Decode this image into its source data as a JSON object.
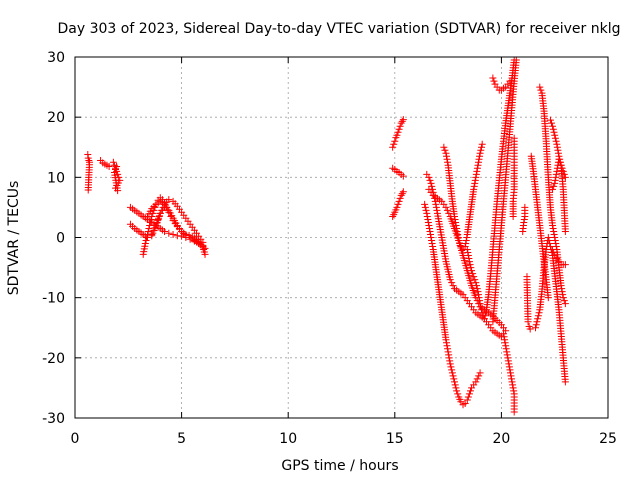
{
  "chart_data": {
    "type": "scatter",
    "title": "Day 303 of 2023, Sidereal Day-to-day VTEC variation (SDTVAR) for receiver nklg",
    "xlabel": "GPS time / hours",
    "ylabel": "SDTVAR / TECUs",
    "xlim": [
      0,
      25
    ],
    "ylim": [
      -30,
      30
    ],
    "xticks": [
      "0",
      "5",
      "10",
      "15",
      "20",
      "25"
    ],
    "yticks": [
      "-30",
      "-20",
      "-10",
      "0",
      "10",
      "20",
      "30"
    ],
    "grid": true,
    "marker": "plus",
    "color": "#ff0000",
    "series": [
      {
        "x": [
          0.6,
          0.62,
          0.65,
          0.68,
          0.62
        ],
        "y": [
          13.8,
          13.2,
          12.8,
          12.5,
          7.9
        ]
      },
      {
        "x": [
          1.2,
          1.3,
          1.4,
          1.5,
          1.6
        ],
        "y": [
          12.8,
          12.4,
          12.2,
          12.0,
          11.8
        ]
      },
      {
        "x": [
          1.8,
          1.85,
          1.9,
          1.95,
          2.0,
          2.05,
          2.1,
          1.9,
          2.0,
          1.85,
          1.95
        ],
        "y": [
          12.5,
          12.0,
          11.5,
          11.0,
          10.5,
          10.0,
          9.5,
          8.2,
          7.8,
          10.8,
          11.8
        ]
      },
      {
        "x": [
          2.6,
          2.8,
          3.0,
          3.2,
          3.4,
          3.6,
          3.8,
          4.0,
          4.2,
          4.4,
          4.6,
          4.8,
          5.0,
          5.2,
          5.4,
          5.6,
          5.8,
          6.0,
          6.1
        ],
        "y": [
          5.0,
          4.5,
          4.0,
          3.5,
          3.0,
          2.5,
          2.0,
          1.5,
          1.0,
          0.7,
          0.5,
          0.3,
          0.2,
          0.0,
          -0.3,
          -0.6,
          -0.9,
          -1.3,
          -1.8
        ]
      },
      {
        "x": [
          2.6,
          2.8,
          3.0,
          3.2,
          3.4,
          3.6,
          3.8,
          4.0,
          4.2,
          4.4,
          4.6,
          4.8,
          5.0,
          5.2,
          5.4,
          5.6,
          5.8,
          6.0
        ],
        "y": [
          2.2,
          1.5,
          1.0,
          0.5,
          0.0,
          0.3,
          2.0,
          4.0,
          5.5,
          6.3,
          6.0,
          5.2,
          4.2,
          3.2,
          2.2,
          1.2,
          0.2,
          -0.8
        ]
      },
      {
        "x": [
          3.2,
          3.3,
          3.4,
          3.5,
          3.6,
          3.7,
          3.8,
          3.9,
          4.0,
          4.1,
          4.2,
          4.3,
          4.4,
          4.5,
          4.6,
          4.8,
          5.0,
          5.2,
          5.5,
          5.8,
          6.0,
          6.1
        ],
        "y": [
          -2.8,
          -1.0,
          0.5,
          2.0,
          3.5,
          4.5,
          5.5,
          6.2,
          6.6,
          6.3,
          5.8,
          5.0,
          4.2,
          3.5,
          2.8,
          1.8,
          1.0,
          0.5,
          0.2,
          -0.6,
          -1.6,
          -2.8
        ]
      },
      {
        "x": [
          3.4,
          3.6,
          3.8,
          4.0,
          4.2,
          4.4,
          4.6,
          4.8,
          5.0,
          5.2,
          5.4,
          5.6,
          5.8,
          6.0
        ],
        "y": [
          3.5,
          4.8,
          5.5,
          6.0,
          5.5,
          4.5,
          3.2,
          2.0,
          1.0,
          0.3,
          0.0,
          -0.5,
          -1.0,
          -1.5
        ]
      },
      {
        "x": [
          3.6,
          3.7,
          3.8,
          3.9,
          4.0,
          4.1,
          4.2
        ],
        "y": [
          0.5,
          1.2,
          2.0,
          3.0,
          4.0,
          4.5,
          5.0
        ]
      },
      {
        "x": [
          14.9,
          14.95,
          15.0,
          15.05,
          15.1,
          15.15,
          15.2,
          15.25,
          15.3,
          15.35,
          15.4
        ],
        "y": [
          15.0,
          15.5,
          16.0,
          16.6,
          17.0,
          17.5,
          18.0,
          18.5,
          19.0,
          19.3,
          19.6
        ]
      },
      {
        "x": [
          14.9,
          15.0,
          15.1,
          15.2,
          15.3,
          15.4
        ],
        "y": [
          11.5,
          11.3,
          11.0,
          10.8,
          10.5,
          10.2
        ]
      },
      {
        "x": [
          14.9,
          14.95,
          15.0,
          15.05,
          15.1,
          15.15,
          15.2,
          15.25,
          15.3,
          15.35,
          15.4
        ],
        "y": [
          3.5,
          3.8,
          4.2,
          4.6,
          5.0,
          5.5,
          6.0,
          6.5,
          7.0,
          7.3,
          7.6
        ]
      },
      {
        "x": [
          16.4,
          16.5,
          16.6,
          16.7,
          16.8,
          16.9,
          17.0,
          17.1,
          17.2,
          17.3,
          17.4,
          17.5,
          17.6,
          17.7,
          17.8,
          17.9,
          18.0,
          18.1,
          18.2,
          18.3,
          18.4,
          18.5,
          18.6,
          18.8,
          19.0
        ],
        "y": [
          5.5,
          4.0,
          2.0,
          0.0,
          -2.0,
          -4.5,
          -7.0,
          -9.5,
          -12.0,
          -14.5,
          -17.0,
          -19.0,
          -21.0,
          -22.5,
          -24.0,
          -25.5,
          -26.5,
          -27.3,
          -27.8,
          -27.6,
          -27.0,
          -26.0,
          -25.0,
          -24.0,
          -22.5
        ]
      },
      {
        "x": [
          16.5,
          16.6,
          16.7,
          16.8,
          16.9,
          17.0,
          17.2,
          17.4,
          17.6,
          17.8,
          18.0,
          18.2,
          18.4,
          18.6,
          18.8,
          19.0,
          19.2,
          19.4,
          19.6,
          19.8,
          20.0
        ],
        "y": [
          10.5,
          10.0,
          9.0,
          7.5,
          6.0,
          4.0,
          0.0,
          -4.0,
          -7.0,
          -8.5,
          -9.0,
          -9.5,
          -10.5,
          -11.5,
          -12.5,
          -13.0,
          -13.5,
          -14.5,
          -15.5,
          -16.0,
          -16.5
        ]
      },
      {
        "x": [
          16.6,
          16.8,
          17.0,
          17.2,
          17.4,
          17.6,
          17.8,
          18.0,
          18.2,
          18.4,
          18.6,
          18.8,
          19.0,
          19.2,
          19.4,
          19.6,
          19.8,
          20.0,
          20.2
        ],
        "y": [
          8.0,
          7.0,
          6.5,
          6.0,
          5.0,
          3.5,
          1.5,
          -0.5,
          -3.0,
          -5.5,
          -8.0,
          -10.0,
          -11.5,
          -12.0,
          -12.5,
          -13.0,
          -13.8,
          -14.5,
          -15.5
        ]
      },
      {
        "x": [
          17.3,
          17.4,
          17.5,
          17.6,
          17.7,
          17.8,
          17.9,
          18.0,
          18.1,
          18.2,
          18.3,
          18.4,
          18.5,
          18.6,
          18.7,
          18.8,
          18.9,
          19.0,
          19.1
        ],
        "y": [
          15.0,
          14.0,
          12.0,
          9.0,
          6.0,
          3.5,
          1.5,
          -0.5,
          -1.5,
          -2.0,
          -1.5,
          0.5,
          3.0,
          5.5,
          8.0,
          10.0,
          12.0,
          14.0,
          15.5
        ]
      },
      {
        "x": [
          18.4,
          18.5,
          18.6,
          18.7,
          18.8,
          18.9,
          19.0,
          19.1,
          19.2,
          19.3,
          19.4,
          19.5,
          19.6,
          19.7,
          19.8,
          19.9,
          20.0,
          20.1,
          20.2,
          20.3,
          20.4,
          20.5,
          20.6
        ],
        "y": [
          -2.0,
          -4.0,
          -5.5,
          -6.5,
          -7.5,
          -9.0,
          -11.0,
          -12.5,
          -13.5,
          -12.0,
          -9.5,
          -6.0,
          -2.0,
          2.0,
          6.0,
          9.5,
          13.0,
          16.0,
          19.0,
          21.5,
          24.0,
          26.5,
          29.5
        ]
      },
      {
        "x": [
          19.6,
          19.7,
          19.8,
          19.9,
          20.0,
          20.1,
          20.2,
          20.3,
          20.4,
          20.5,
          20.6,
          20.7
        ],
        "y": [
          -14.0,
          -10.0,
          -6.0,
          -2.0,
          2.0,
          6.0,
          10.0,
          14.0,
          18.0,
          22.0,
          26.0,
          29.5
        ]
      },
      {
        "x": [
          19.6,
          19.7,
          19.8,
          19.9,
          20.0,
          20.1,
          20.2,
          20.3,
          20.4,
          20.5
        ],
        "y": [
          26.5,
          25.5,
          25.0,
          24.5,
          24.5,
          24.8,
          25.0,
          25.5,
          26.0,
          26.5
        ]
      },
      {
        "x": [
          20.1,
          20.2,
          20.3,
          20.4,
          20.5,
          20.6,
          20.6,
          20.6,
          20.6
        ],
        "y": [
          -16.0,
          -18.0,
          -20.0,
          -22.0,
          -24.0,
          -26.0,
          -27.5,
          -28.5,
          -29.0
        ]
      },
      {
        "x": [
          20.55,
          20.55,
          20.6,
          20.6,
          20.6,
          20.6,
          20.6
        ],
        "y": [
          3.5,
          6.0,
          8.0,
          12.0,
          13.5,
          15.0,
          16.5
        ]
      },
      {
        "x": [
          21.0,
          21.05,
          21.1,
          21.1
        ],
        "y": [
          1.0,
          2.5,
          3.5,
          5.0
        ]
      },
      {
        "x": [
          21.2,
          21.2,
          21.25,
          21.3,
          21.35
        ],
        "y": [
          -6.5,
          -7.0,
          -14.0,
          -14.8,
          -15.2
        ]
      },
      {
        "x": [
          21.4,
          21.5,
          21.6,
          21.7,
          21.8,
          21.9,
          22.0,
          22.1,
          22.2
        ],
        "y": [
          13.5,
          11.0,
          8.0,
          5.0,
          2.0,
          -1.0,
          -4.0,
          -7.0,
          -10.0
        ]
      },
      {
        "x": [
          21.6,
          21.7,
          21.8,
          21.9,
          22.0,
          22.1,
          22.2,
          22.3,
          22.4,
          22.5,
          22.6,
          22.7,
          22.8,
          22.9,
          23.0
        ],
        "y": [
          -15.0,
          -13.5,
          -12.0,
          -9.0,
          -5.0,
          -2.0,
          0.0,
          -1.5,
          -3.0,
          -6.0,
          -9.0,
          -12.0,
          -16.0,
          -20.0,
          -24.0
        ]
      },
      {
        "x": [
          21.8,
          21.9,
          22.0,
          22.1,
          22.2,
          22.3,
          22.4,
          22.5,
          22.6,
          22.7,
          22.8,
          22.9,
          23.0
        ],
        "y": [
          25.0,
          24.0,
          21.0,
          16.0,
          10.0,
          5.0,
          2.0,
          0.0,
          -2.0,
          -5.0,
          -8.0,
          -10.0,
          -11.0
        ]
      },
      {
        "x": [
          22.3,
          22.4,
          22.5,
          22.6,
          22.7,
          22.8,
          22.9,
          23.0
        ],
        "y": [
          19.5,
          18.5,
          17.0,
          15.5,
          13.5,
          12.0,
          11.0,
          10.0
        ]
      },
      {
        "x": [
          22.4,
          22.5,
          22.6,
          22.7,
          22.8,
          22.9,
          23.0
        ],
        "y": [
          8.0,
          9.0,
          11.0,
          13.0,
          12.0,
          8.0,
          1.0
        ]
      },
      {
        "x": [
          22.4,
          22.5,
          22.6,
          22.7,
          22.8,
          22.9,
          23.0
        ],
        "y": [
          -2.0,
          -3.0,
          -3.5,
          -4.0,
          -4.5,
          -4.5,
          -4.5
        ]
      }
    ]
  }
}
